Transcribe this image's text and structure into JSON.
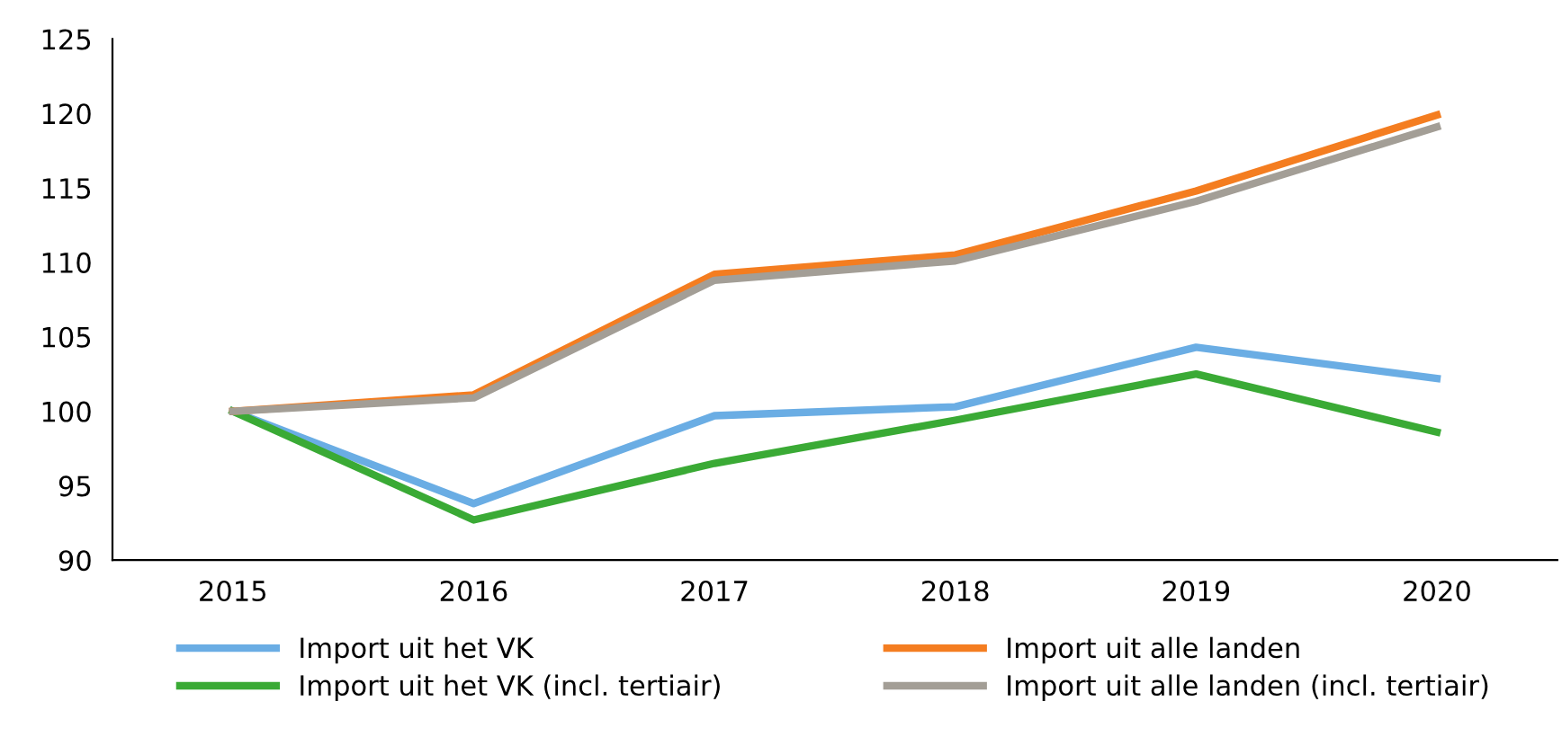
{
  "chart_data": {
    "type": "line",
    "categories": [
      "2015",
      "2016",
      "2017",
      "2018",
      "2019",
      "2020"
    ],
    "series": [
      {
        "name": "Import uit het VK",
        "color": "#6aade4",
        "values": [
          100,
          93.8,
          99.7,
          100.3,
          104.3,
          102.2
        ]
      },
      {
        "name": "Import uit het VK (incl. tertiair)",
        "color": "#3aaa35",
        "values": [
          100,
          92.7,
          96.5,
          99.4,
          102.5,
          98.6
        ]
      },
      {
        "name": "Import uit alle landen",
        "color": "#f47d20",
        "values": [
          100,
          101.1,
          109.2,
          110.5,
          114.8,
          119.9
        ]
      },
      {
        "name": "Import uit alle landen (incl. tertiair)",
        "color": "#a39e96",
        "values": [
          100,
          100.9,
          108.8,
          110.1,
          114.1,
          119.1
        ]
      }
    ],
    "ylim": [
      90,
      125
    ],
    "yticks": [
      90,
      95,
      100,
      105,
      110,
      115,
      120,
      125
    ],
    "grid": false,
    "legend": "bottom",
    "marker": "none",
    "line_style": "solid"
  }
}
